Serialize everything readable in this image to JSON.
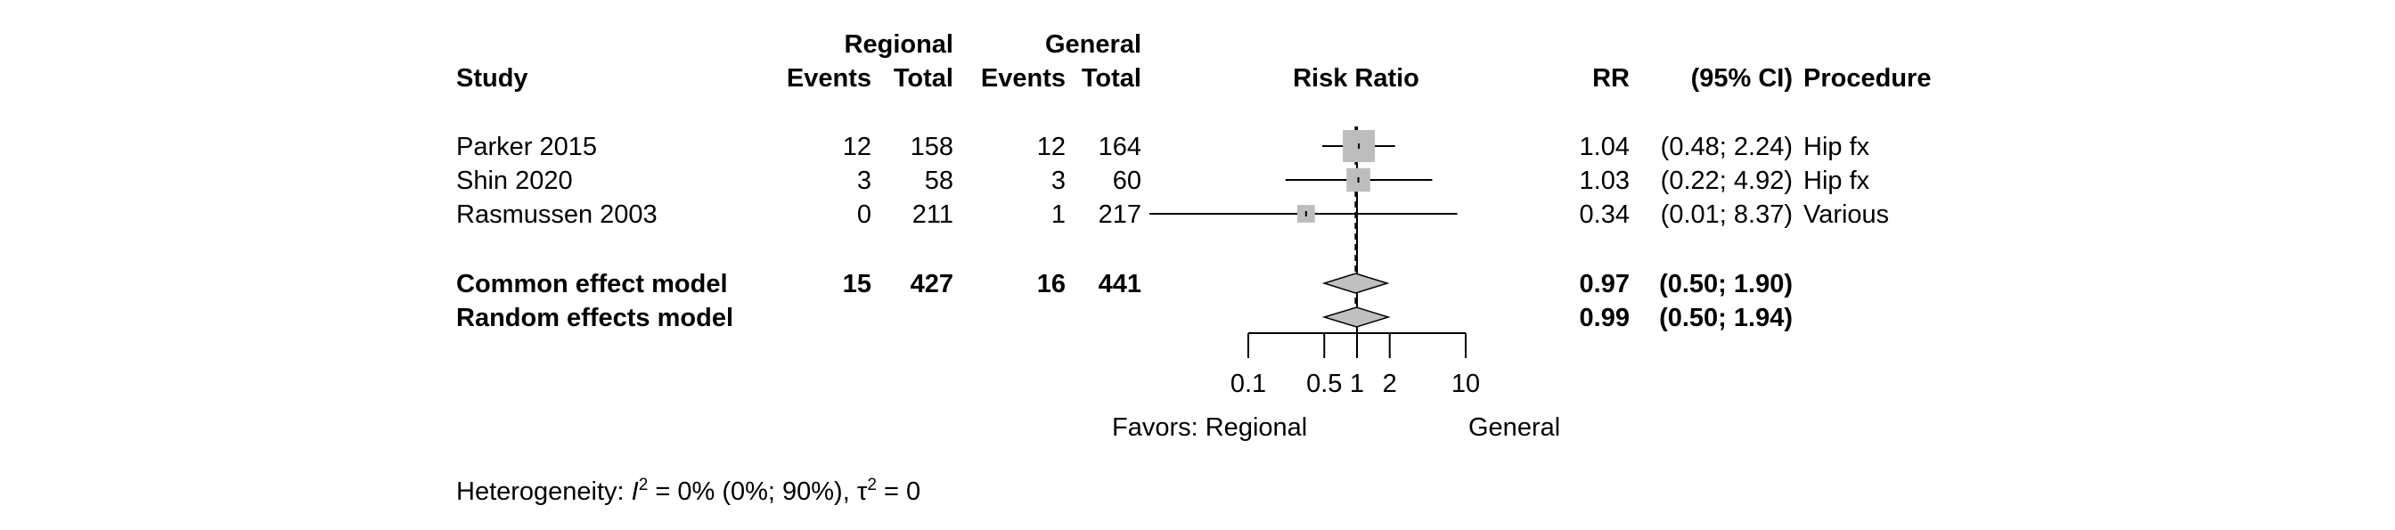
{
  "chart_data": {
    "type": "forest",
    "measure": "Risk Ratio",
    "scale": "log",
    "xlim": [
      0.1,
      10
    ],
    "ticks": [
      0.1,
      0.5,
      1,
      2,
      10
    ],
    "tick_labels": [
      "0.1",
      "0.5",
      "1",
      "2",
      "10"
    ],
    "favors_left": "Favors: Regional",
    "favors_right": "General",
    "headers": {
      "study": "Study",
      "group1": "Regional",
      "group2": "General",
      "events": "Events",
      "total": "Total",
      "plot": "Risk Ratio",
      "rr": "RR",
      "ci": "(95% CI)",
      "procedure": "Procedure"
    },
    "studies": [
      {
        "study": "Parker 2015",
        "e1": "12",
        "n1": "158",
        "e2": "12",
        "n2": "164",
        "rr": 1.04,
        "lo": 0.48,
        "hi": 2.24,
        "rr_text": "1.04",
        "ci_text": "(0.48; 2.24)",
        "procedure": "Hip fx",
        "weight": 0.62
      },
      {
        "study": "Shin 2020",
        "e1": "3",
        "n1": "58",
        "e2": "3",
        "n2": "60",
        "rr": 1.03,
        "lo": 0.22,
        "hi": 4.92,
        "rr_text": "1.03",
        "ci_text": "(0.22; 4.92)",
        "procedure": "Hip fx",
        "weight": 0.27
      },
      {
        "study": "Rasmussen 2003",
        "e1": "0",
        "n1": "211",
        "e2": "1",
        "n2": "217",
        "rr": 0.34,
        "lo": 0.01,
        "hi": 8.37,
        "rr_text": "0.34",
        "ci_text": "(0.01; 8.37)",
        "procedure": "Various",
        "weight": 0.11
      }
    ],
    "pooled": [
      {
        "model": "Common effect model",
        "e1": "15",
        "n1": "427",
        "e2": "16",
        "n2": "441",
        "rr": 0.97,
        "lo": 0.5,
        "hi": 1.9,
        "rr_text": "0.97",
        "ci_text": "(0.50; 1.90)"
      },
      {
        "model": "Random effects model",
        "e1": "",
        "n1": "",
        "e2": "",
        "n2": "",
        "rr": 0.99,
        "lo": 0.5,
        "hi": 1.94,
        "rr_text": "0.99",
        "ci_text": "(0.50; 1.94)"
      }
    ],
    "heterogeneity": {
      "prefix": "Heterogeneity: ",
      "i2_symbol": "I",
      "i2_sup": "2",
      "i2_value": " = 0% (0%; 90%), ",
      "tau_symbol": "τ",
      "tau_sup": "2",
      "tau_value": " = 0"
    },
    "colors": {
      "box": "#bdbdbd",
      "diamond": "#c0c0c0",
      "line": "#000000",
      "reference_line": "#000000"
    }
  }
}
